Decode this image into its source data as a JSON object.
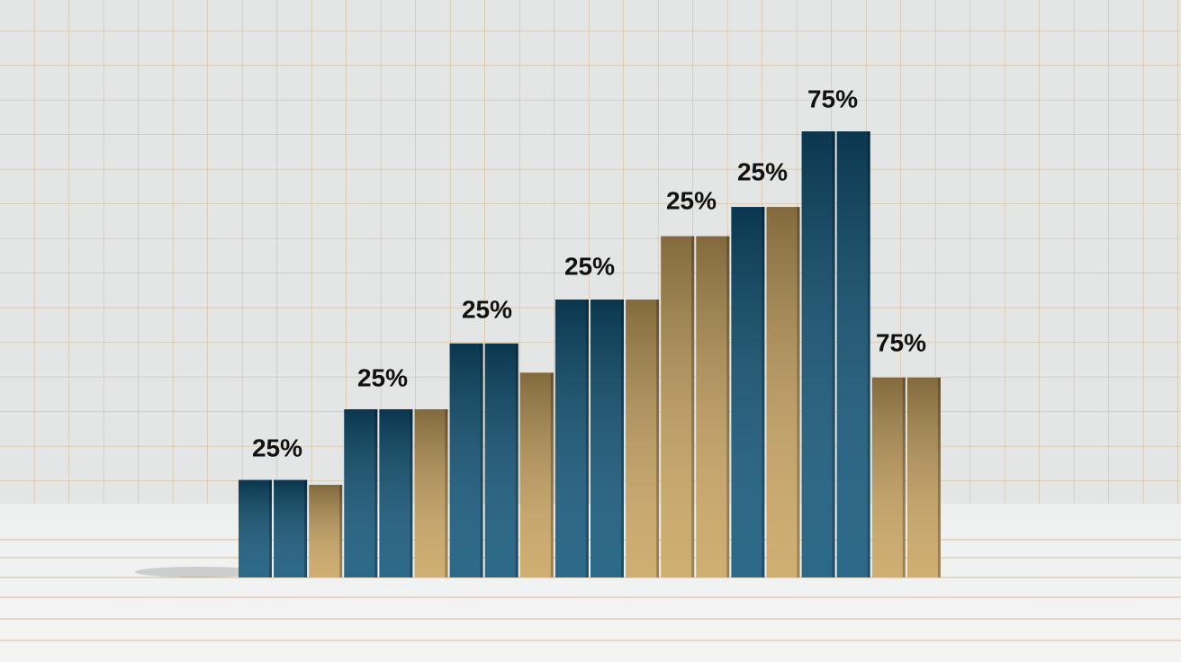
{
  "chart_data": {
    "type": "bar",
    "values": [
      20,
      20,
      19,
      34.5,
      34.5,
      34.5,
      48,
      48,
      42,
      57,
      57,
      57,
      70,
      70,
      76,
      76,
      91.5,
      91.5,
      41,
      41
    ],
    "colors": [
      "#0f5478",
      "#0f5478",
      "#c9a35e",
      "#0f5478",
      "#0f5478",
      "#c9a35e",
      "#0f5478",
      "#0f5478",
      "#c9a35e",
      "#0f5478",
      "#0f5478",
      "#c9a35e",
      "#c9a35e",
      "#c9a35e",
      "#0f5478",
      "#c9a35e",
      "#0f5478",
      "#0f5478",
      "#c9a35e",
      "#c9a35e"
    ],
    "ylim": [
      0,
      100
    ],
    "annotations": [
      "25%",
      "25%",
      "25%",
      "25%",
      "25%",
      "25%",
      "75%",
      "75%"
    ]
  }
}
